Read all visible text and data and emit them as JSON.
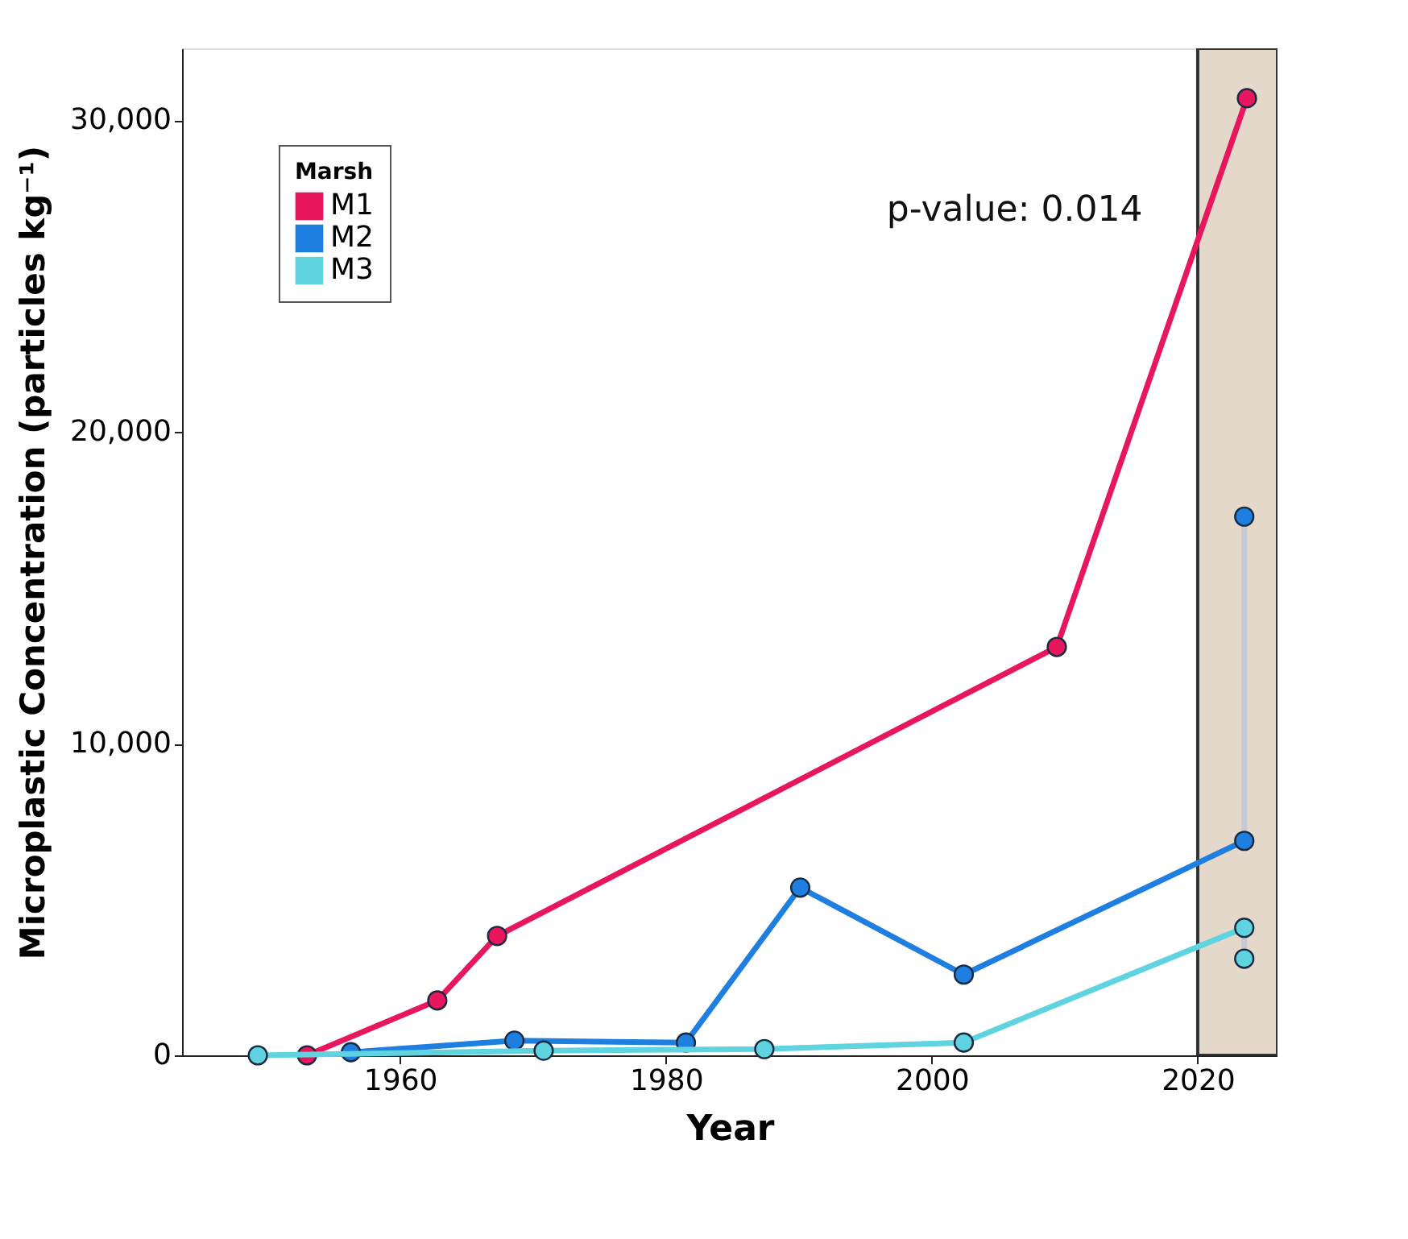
{
  "chart_data": {
    "type": "line",
    "xlabel": "Year",
    "ylabel": "Microplastic Concentration (particles kg⁻¹)",
    "legend_title": "Marsh",
    "xlim": [
      1943.6,
      2026
    ],
    "xticks": [
      1960,
      1980,
      2000,
      2020
    ],
    "ylim": [
      0,
      32300
    ],
    "yticks": [
      0,
      {
        "value": 10000,
        "label": "10,000"
      },
      {
        "value": 20000,
        "label": "20,000"
      },
      {
        "value": 30000,
        "label": "30,000"
      }
    ],
    "grid": false,
    "legend": "top left",
    "marker": "circle",
    "annotations": [
      "p-value: 0.014"
    ],
    "bands": [
      {
        "axis": "x",
        "from": 2020,
        "to": 2026,
        "color": "#e3d8ca"
      }
    ],
    "series": [
      {
        "type": "line",
        "color": "#c5cad3",
        "x": [
          2023.5,
          2023.5
        ],
        "values": [
          6880,
          17280
        ],
        "marker": "none"
      },
      {
        "type": "line",
        "color": "#c5cad3",
        "x": [
          2023.5,
          2023.5
        ],
        "values": [
          3100,
          4090
        ],
        "marker": "none"
      },
      {
        "name": "M1",
        "color": "#e8175d",
        "x": [
          1953.0,
          1962.8,
          1967.3,
          2009.4,
          2023.7
        ],
        "values": [
          0,
          1760,
          3830,
          13100,
          30700
        ]
      },
      {
        "name": "M2",
        "color": "#1e7fe0",
        "x": [
          1956.3,
          1968.6,
          1981.5,
          1990.1,
          2002.4,
          2023.5
        ],
        "values": [
          100,
          470,
          410,
          5380,
          2590,
          6880
        ]
      },
      {
        "name": "M3",
        "color": "#5fd3e0",
        "x": [
          1949.3,
          1970.8,
          1987.4,
          2002.4,
          2023.5
        ],
        "values": [
          0,
          150,
          200,
          410,
          4090
        ]
      },
      {
        "type": "scatter",
        "color": "#1e7fe0",
        "x": [
          2023.5
        ],
        "values": [
          17280
        ]
      },
      {
        "type": "scatter",
        "color": "#5fd3e0",
        "x": [
          2023.5
        ],
        "values": [
          3100
        ]
      }
    ]
  }
}
